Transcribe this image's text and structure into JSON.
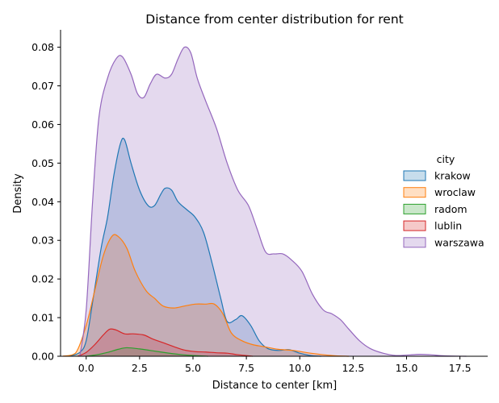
{
  "chart_data": {
    "type": "area",
    "title": "Distance from center distribution for rent",
    "xlabel": "Distance to center [km]",
    "ylabel": "Density",
    "xlim": [
      -1.2,
      18.8
    ],
    "ylim": [
      0,
      0.0845
    ],
    "xticks": [
      {
        "value": 0.0,
        "label": "0.0"
      },
      {
        "value": 2.5,
        "label": "2.5"
      },
      {
        "value": 5.0,
        "label": "5.0"
      },
      {
        "value": 7.5,
        "label": "7.5"
      },
      {
        "value": 10.0,
        "label": "10.0"
      },
      {
        "value": 12.5,
        "label": "12.5"
      },
      {
        "value": 15.0,
        "label": "15.0"
      },
      {
        "value": 17.5,
        "label": "17.5"
      }
    ],
    "yticks": [
      {
        "value": 0.0,
        "label": "0.00"
      },
      {
        "value": 0.01,
        "label": "0.01"
      },
      {
        "value": 0.02,
        "label": "0.02"
      },
      {
        "value": 0.03,
        "label": "0.03"
      },
      {
        "value": 0.04,
        "label": "0.04"
      },
      {
        "value": 0.05,
        "label": "0.05"
      },
      {
        "value": 0.06,
        "label": "0.06"
      },
      {
        "value": 0.07,
        "label": "0.07"
      },
      {
        "value": 0.08,
        "label": "0.08"
      }
    ],
    "grid": false,
    "legend": {
      "title": "city",
      "placement": "center-right"
    },
    "series": [
      {
        "name": "krakow",
        "color": "#1f77b4",
        "points": [
          [
            -0.8,
            0
          ],
          [
            -0.3,
            0.001
          ],
          [
            0,
            0.004
          ],
          [
            0.3,
            0.014
          ],
          [
            0.7,
            0.028
          ],
          [
            1.0,
            0.036
          ],
          [
            1.3,
            0.047
          ],
          [
            1.6,
            0.055
          ],
          [
            1.8,
            0.056
          ],
          [
            2.1,
            0.05
          ],
          [
            2.5,
            0.043
          ],
          [
            2.9,
            0.039
          ],
          [
            3.2,
            0.039
          ],
          [
            3.5,
            0.042
          ],
          [
            3.7,
            0.0435
          ],
          [
            4.0,
            0.043
          ],
          [
            4.3,
            0.04
          ],
          [
            4.7,
            0.038
          ],
          [
            5.1,
            0.036
          ],
          [
            5.5,
            0.032
          ],
          [
            5.9,
            0.024
          ],
          [
            6.3,
            0.015
          ],
          [
            6.6,
            0.009
          ],
          [
            7.0,
            0.0095
          ],
          [
            7.3,
            0.0105
          ],
          [
            7.7,
            0.008
          ],
          [
            8.1,
            0.004
          ],
          [
            8.5,
            0.002
          ],
          [
            9.0,
            0.0015
          ],
          [
            9.5,
            0.0017
          ],
          [
            10.0,
            0.0008
          ],
          [
            10.5,
            0.0002
          ],
          [
            11.0,
            0
          ]
        ]
      },
      {
        "name": "wroclaw",
        "color": "#ff7f0e",
        "points": [
          [
            -1.1,
            0
          ],
          [
            -0.5,
            0.0008
          ],
          [
            0,
            0.008
          ],
          [
            0.4,
            0.017
          ],
          [
            0.8,
            0.026
          ],
          [
            1.2,
            0.031
          ],
          [
            1.5,
            0.031
          ],
          [
            1.9,
            0.028
          ],
          [
            2.3,
            0.022
          ],
          [
            2.8,
            0.017
          ],
          [
            3.2,
            0.015
          ],
          [
            3.6,
            0.013
          ],
          [
            4.1,
            0.0125
          ],
          [
            4.6,
            0.013
          ],
          [
            5.1,
            0.0135
          ],
          [
            5.6,
            0.0135
          ],
          [
            6.0,
            0.0135
          ],
          [
            6.4,
            0.011
          ],
          [
            6.8,
            0.006
          ],
          [
            7.3,
            0.004
          ],
          [
            7.8,
            0.003
          ],
          [
            8.3,
            0.0025
          ],
          [
            9.0,
            0.0018
          ],
          [
            9.7,
            0.0015
          ],
          [
            10.5,
            0.0008
          ],
          [
            11.5,
            0.0002
          ],
          [
            12.3,
            0
          ]
        ]
      },
      {
        "name": "radom",
        "color": "#2ca02c",
        "points": [
          [
            0,
            0
          ],
          [
            0.5,
            0.0004
          ],
          [
            1.0,
            0.001
          ],
          [
            1.5,
            0.0018
          ],
          [
            1.9,
            0.0022
          ],
          [
            2.5,
            0.0019
          ],
          [
            3.0,
            0.0015
          ],
          [
            3.5,
            0.0011
          ],
          [
            4.0,
            0.0007
          ],
          [
            4.5,
            0.0004
          ],
          [
            5.0,
            0.0002
          ],
          [
            5.7,
            0
          ]
        ]
      },
      {
        "name": "lublin",
        "color": "#d62728",
        "points": [
          [
            -0.4,
            0
          ],
          [
            0,
            0.001
          ],
          [
            0.4,
            0.003
          ],
          [
            0.8,
            0.0055
          ],
          [
            1.1,
            0.007
          ],
          [
            1.4,
            0.0068
          ],
          [
            1.8,
            0.0058
          ],
          [
            2.2,
            0.0058
          ],
          [
            2.7,
            0.0055
          ],
          [
            3.1,
            0.0045
          ],
          [
            3.6,
            0.0035
          ],
          [
            4.1,
            0.0025
          ],
          [
            4.6,
            0.0016
          ],
          [
            5.1,
            0.0012
          ],
          [
            5.6,
            0.0011
          ],
          [
            6.1,
            0.0009
          ],
          [
            6.6,
            0.0008
          ],
          [
            7.1,
            0.0004
          ],
          [
            7.8,
            0
          ]
        ]
      },
      {
        "name": "warszawa",
        "color": "#9467bd",
        "points": [
          [
            -0.3,
            0
          ],
          [
            0,
            0.012
          ],
          [
            0.3,
            0.04
          ],
          [
            0.6,
            0.062
          ],
          [
            1.0,
            0.072
          ],
          [
            1.4,
            0.077
          ],
          [
            1.7,
            0.0775
          ],
          [
            2.1,
            0.073
          ],
          [
            2.4,
            0.068
          ],
          [
            2.7,
            0.067
          ],
          [
            3.0,
            0.0705
          ],
          [
            3.3,
            0.073
          ],
          [
            3.7,
            0.072
          ],
          [
            4.0,
            0.073
          ],
          [
            4.3,
            0.077
          ],
          [
            4.6,
            0.08
          ],
          [
            4.9,
            0.0785
          ],
          [
            5.2,
            0.072
          ],
          [
            5.6,
            0.066
          ],
          [
            6.1,
            0.059
          ],
          [
            6.6,
            0.05
          ],
          [
            7.1,
            0.043
          ],
          [
            7.6,
            0.039
          ],
          [
            8.0,
            0.033
          ],
          [
            8.4,
            0.027
          ],
          [
            8.8,
            0.0265
          ],
          [
            9.2,
            0.0265
          ],
          [
            9.6,
            0.025
          ],
          [
            10.1,
            0.022
          ],
          [
            10.6,
            0.016
          ],
          [
            11.1,
            0.012
          ],
          [
            11.5,
            0.011
          ],
          [
            11.9,
            0.0095
          ],
          [
            12.3,
            0.007
          ],
          [
            12.8,
            0.004
          ],
          [
            13.3,
            0.002
          ],
          [
            13.9,
            0.0008
          ],
          [
            14.5,
            0.0002
          ],
          [
            15.0,
            0.0003
          ],
          [
            15.6,
            0.0005
          ],
          [
            16.1,
            0.0004
          ],
          [
            16.8,
            0.0001
          ],
          [
            17.8,
            0
          ]
        ]
      }
    ]
  }
}
